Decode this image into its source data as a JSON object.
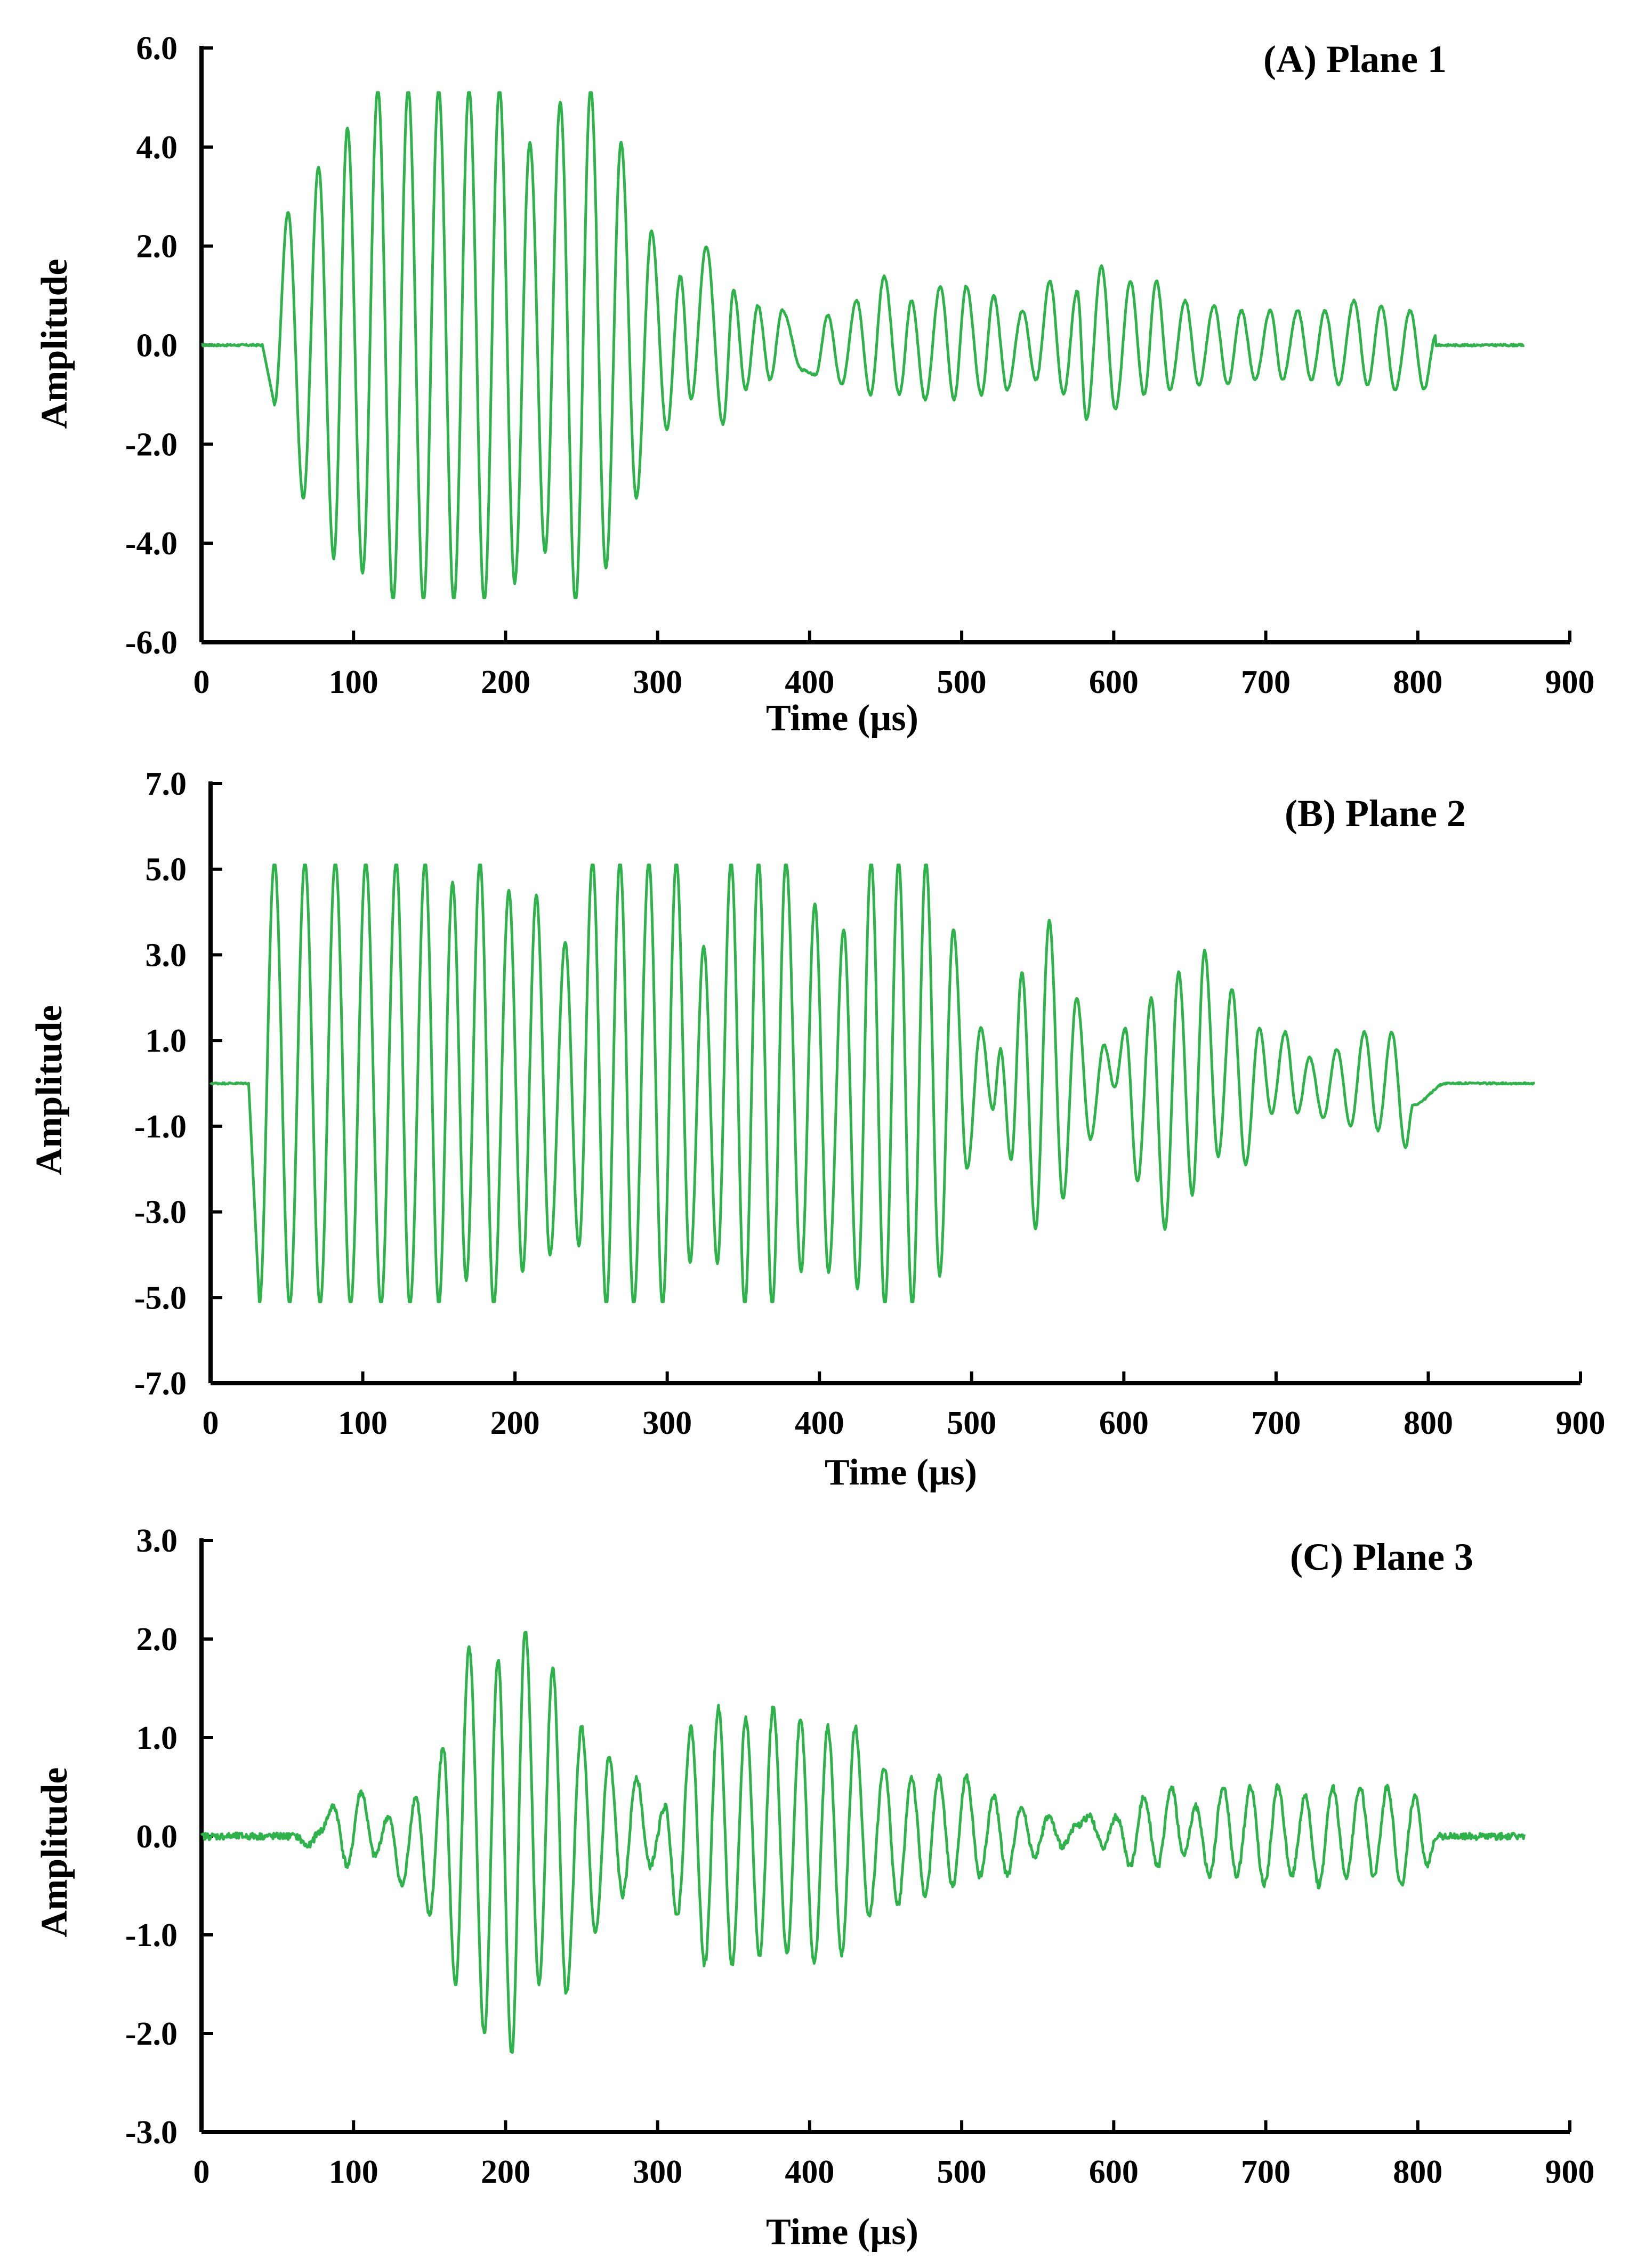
{
  "colors": {
    "trace": "#2db34a",
    "axis": "#000000"
  },
  "chart_data": [
    {
      "type": "line",
      "title": "(A) Plane 1",
      "xlabel": "Time (µs)",
      "ylabel": "Amplitude",
      "xlim": [
        0,
        900
      ],
      "ylim": [
        -6,
        6
      ],
      "x_ticks": [
        0,
        100,
        200,
        300,
        400,
        500,
        600,
        700,
        800,
        900
      ],
      "x_tick_labels": [
        "0",
        "100",
        "200",
        "300",
        "400",
        "500",
        "600",
        "700",
        "800",
        "900"
      ],
      "y_ticks": [
        -6,
        -4,
        -2,
        0,
        2,
        4,
        6
      ],
      "y_tick_labels": [
        "-6.0",
        "-4.0",
        "-2.0",
        "0.0",
        "2.0",
        "4.0",
        "6.0"
      ],
      "signal": {
        "start": 40,
        "end": 812,
        "duration": 870,
        "clip": 5.1,
        "noise": 0.02,
        "extrema": [
          [
            48,
            -1.2
          ],
          [
            57,
            2.7
          ],
          [
            67,
            -3.1
          ],
          [
            77,
            3.6
          ],
          [
            87,
            -4.3
          ],
          [
            96,
            4.4
          ],
          [
            106,
            -4.6
          ],
          [
            116,
            5.2
          ],
          [
            126,
            -5.2
          ],
          [
            136,
            5.2
          ],
          [
            146,
            -5.2
          ],
          [
            156,
            5.2
          ],
          [
            166,
            -5.2
          ],
          [
            176,
            5.2
          ],
          [
            186,
            -5.2
          ],
          [
            196,
            5.2
          ],
          [
            206,
            -4.8
          ],
          [
            216,
            4.1
          ],
          [
            226,
            -4.2
          ],
          [
            236,
            4.9
          ],
          [
            246,
            -5.2
          ],
          [
            256,
            5.2
          ],
          [
            266,
            -4.5
          ],
          [
            276,
            4.1
          ],
          [
            286,
            -3.1
          ],
          [
            296,
            2.3
          ],
          [
            306,
            -1.7
          ],
          [
            315,
            1.4
          ],
          [
            322,
            -1.1
          ],
          [
            332,
            2.0
          ],
          [
            343,
            -1.6
          ],
          [
            350,
            1.1
          ],
          [
            358,
            -0.9
          ],
          [
            366,
            0.8
          ],
          [
            374,
            -0.7
          ],
          [
            382,
            0.7
          ],
          [
            395,
            -0.5
          ],
          [
            404,
            -0.6
          ],
          [
            412,
            0.6
          ],
          [
            421,
            -0.8
          ],
          [
            431,
            0.9
          ],
          [
            440,
            -1.0
          ],
          [
            449,
            1.4
          ],
          [
            459,
            -1.0
          ],
          [
            467,
            0.9
          ],
          [
            476,
            -1.1
          ],
          [
            486,
            1.2
          ],
          [
            495,
            -1.1
          ],
          [
            503,
            1.2
          ],
          [
            513,
            -1.0
          ],
          [
            521,
            1.0
          ],
          [
            530,
            -0.9
          ],
          [
            540,
            0.7
          ],
          [
            549,
            -0.7
          ],
          [
            558,
            1.3
          ],
          [
            567,
            -1.0
          ],
          [
            576,
            1.1
          ],
          [
            582,
            -1.5
          ],
          [
            592,
            1.6
          ],
          [
            601,
            -1.3
          ],
          [
            611,
            1.3
          ],
          [
            620,
            -1.0
          ],
          [
            628,
            1.3
          ],
          [
            637,
            -0.9
          ],
          [
            647,
            0.9
          ],
          [
            656,
            -0.8
          ],
          [
            666,
            0.8
          ],
          [
            675,
            -0.8
          ],
          [
            684,
            0.7
          ],
          [
            693,
            -0.7
          ],
          [
            703,
            0.7
          ],
          [
            711,
            -0.7
          ],
          [
            721,
            0.7
          ],
          [
            730,
            -0.7
          ],
          [
            739,
            0.7
          ],
          [
            748,
            -0.8
          ],
          [
            758,
            0.9
          ],
          [
            767,
            -0.8
          ],
          [
            776,
            0.8
          ],
          [
            785,
            -0.9
          ],
          [
            795,
            0.7
          ],
          [
            804,
            -0.9
          ],
          [
            812,
            0.2
          ]
        ]
      }
    },
    {
      "type": "line",
      "title": "(B) Plane 2",
      "xlabel": "Time (µs)",
      "ylabel": "Amplitude",
      "xlim": [
        0,
        900
      ],
      "ylim": [
        -7,
        7
      ],
      "x_ticks": [
        0,
        100,
        200,
        300,
        400,
        500,
        600,
        700,
        800,
        900
      ],
      "x_tick_labels": [
        "0",
        "100",
        "200",
        "300",
        "400",
        "500",
        "600",
        "700",
        "800",
        "900"
      ],
      "y_ticks": [
        -7,
        -5,
        -3,
        -1,
        1,
        3,
        5,
        7
      ],
      "y_tick_labels": [
        "-7.0",
        "-5.0",
        "-3.0",
        "-1.0",
        "1.0",
        "3.0",
        "5.0",
        "7.0"
      ],
      "signal": {
        "start": 25,
        "end": 812,
        "duration": 870,
        "clip": 5.1,
        "noise": 0.02,
        "extrema": [
          [
            32,
            -5.2
          ],
          [
            42,
            5.2
          ],
          [
            52,
            -5.2
          ],
          [
            62,
            5.2
          ],
          [
            72,
            -5.2
          ],
          [
            82,
            5.2
          ],
          [
            92,
            -5.2
          ],
          [
            102,
            5.2
          ],
          [
            112,
            -5.2
          ],
          [
            122,
            5.2
          ],
          [
            131,
            -5.2
          ],
          [
            141,
            5.2
          ],
          [
            150,
            -5.2
          ],
          [
            159,
            4.7
          ],
          [
            168,
            -4.6
          ],
          [
            177,
            5.2
          ],
          [
            186,
            -5.2
          ],
          [
            196,
            4.5
          ],
          [
            205,
            -4.4
          ],
          [
            214,
            4.4
          ],
          [
            223,
            -4.0
          ],
          [
            233,
            3.3
          ],
          [
            242,
            -3.8
          ],
          [
            251,
            5.2
          ],
          [
            260,
            -5.2
          ],
          [
            269,
            5.2
          ],
          [
            278,
            -5.2
          ],
          [
            288,
            5.2
          ],
          [
            297,
            -5.2
          ],
          [
            306,
            5.2
          ],
          [
            315,
            -4.2
          ],
          [
            324,
            3.2
          ],
          [
            333,
            -4.2
          ],
          [
            342,
            5.2
          ],
          [
            351,
            -5.2
          ],
          [
            360,
            5.2
          ],
          [
            369,
            -5.2
          ],
          [
            378,
            5.2
          ],
          [
            388,
            -4.4
          ],
          [
            397,
            4.2
          ],
          [
            406,
            -4.4
          ],
          [
            416,
            3.6
          ],
          [
            425,
            -4.8
          ],
          [
            434,
            5.2
          ],
          [
            443,
            -5.2
          ],
          [
            452,
            5.2
          ],
          [
            461,
            -5.2
          ],
          [
            470,
            5.2
          ],
          [
            479,
            -4.5
          ],
          [
            488,
            3.6
          ],
          [
            497,
            -2.0
          ],
          [
            506,
            1.3
          ],
          [
            514,
            -0.6
          ],
          [
            519,
            0.8
          ],
          [
            526,
            -1.8
          ],
          [
            533,
            2.6
          ],
          [
            542,
            -3.4
          ],
          [
            551,
            3.8
          ],
          [
            560,
            -2.7
          ],
          [
            569,
            2.0
          ],
          [
            578,
            -1.3
          ],
          [
            587,
            0.9
          ],
          [
            594,
            -0.1
          ],
          [
            601,
            1.3
          ],
          [
            609,
            -2.3
          ],
          [
            618,
            2.0
          ],
          [
            627,
            -3.4
          ],
          [
            636,
            2.6
          ],
          [
            645,
            -2.6
          ],
          [
            653,
            3.1
          ],
          [
            662,
            -1.7
          ],
          [
            671,
            2.2
          ],
          [
            680,
            -1.9
          ],
          [
            689,
            1.3
          ],
          [
            697,
            -0.7
          ],
          [
            706,
            1.2
          ],
          [
            714,
            -0.7
          ],
          [
            722,
            0.6
          ],
          [
            731,
            -0.8
          ],
          [
            740,
            0.8
          ],
          [
            749,
            -1.0
          ],
          [
            758,
            1.2
          ],
          [
            767,
            -1.1
          ],
          [
            776,
            1.2
          ],
          [
            785,
            -1.5
          ],
          [
            790,
            -0.5
          ],
          [
            812,
            0.0
          ]
        ]
      }
    },
    {
      "type": "line",
      "title": "(C) Plane 3",
      "xlabel": "Time (µs)",
      "ylabel": "Amplitude",
      "xlim": [
        0,
        900
      ],
      "ylim": [
        -3,
        3
      ],
      "x_ticks": [
        0,
        100,
        200,
        300,
        400,
        500,
        600,
        700,
        800,
        900
      ],
      "x_tick_labels": [
        "0",
        "100",
        "200",
        "300",
        "400",
        "500",
        "600",
        "700",
        "800",
        "900"
      ],
      "y_ticks": [
        -3,
        -2,
        -1,
        0,
        1,
        2,
        3
      ],
      "y_tick_labels": [
        "-3.0",
        "-2.0",
        "-1.0",
        "0.0",
        "1.0",
        "2.0",
        "3.0"
      ],
      "signal": {
        "start": 60,
        "end": 812,
        "duration": 870,
        "clip": 99,
        "noise": 0.035,
        "extrema": [
          [
            62,
            0.0
          ],
          [
            70,
            -0.1
          ],
          [
            78,
            0.05
          ],
          [
            87,
            0.3
          ],
          [
            96,
            -0.3
          ],
          [
            105,
            0.45
          ],
          [
            114,
            -0.2
          ],
          [
            123,
            0.2
          ],
          [
            132,
            -0.5
          ],
          [
            141,
            0.4
          ],
          [
            150,
            -0.8
          ],
          [
            159,
            0.9
          ],
          [
            167,
            -1.5
          ],
          [
            176,
            1.9
          ],
          [
            186,
            -2.0
          ],
          [
            195,
            1.8
          ],
          [
            204,
            -2.2
          ],
          [
            213,
            2.1
          ],
          [
            222,
            -1.5
          ],
          [
            231,
            1.7
          ],
          [
            240,
            -1.6
          ],
          [
            250,
            1.1
          ],
          [
            259,
            -1.0
          ],
          [
            268,
            0.8
          ],
          [
            277,
            -0.6
          ],
          [
            286,
            0.6
          ],
          [
            295,
            -0.3
          ],
          [
            305,
            0.3
          ],
          [
            313,
            -0.8
          ],
          [
            322,
            1.1
          ],
          [
            331,
            -1.3
          ],
          [
            340,
            1.3
          ],
          [
            349,
            -1.3
          ],
          [
            358,
            1.2
          ],
          [
            367,
            -1.2
          ],
          [
            376,
            1.3
          ],
          [
            385,
            -1.2
          ],
          [
            394,
            1.2
          ],
          [
            403,
            -1.3
          ],
          [
            412,
            1.1
          ],
          [
            421,
            -1.2
          ],
          [
            430,
            1.1
          ],
          [
            439,
            -0.8
          ],
          [
            449,
            0.7
          ],
          [
            458,
            -0.7
          ],
          [
            467,
            0.6
          ],
          [
            476,
            -0.6
          ],
          [
            485,
            0.6
          ],
          [
            494,
            -0.5
          ],
          [
            503,
            0.6
          ],
          [
            512,
            -0.4
          ],
          [
            521,
            0.4
          ],
          [
            530,
            -0.4
          ],
          [
            539,
            0.3
          ],
          [
            548,
            -0.2
          ],
          [
            557,
            0.2
          ],
          [
            566,
            -0.1
          ],
          [
            575,
            0.1
          ],
          [
            584,
            0.2
          ],
          [
            593,
            -0.1
          ],
          [
            602,
            0.2
          ],
          [
            611,
            -0.3
          ],
          [
            620,
            0.4
          ],
          [
            629,
            -0.3
          ],
          [
            638,
            0.5
          ],
          [
            646,
            -0.2
          ],
          [
            654,
            0.3
          ],
          [
            663,
            -0.4
          ],
          [
            672,
            0.5
          ],
          [
            681,
            -0.4
          ],
          [
            690,
            0.5
          ],
          [
            699,
            -0.5
          ],
          [
            708,
            0.5
          ],
          [
            717,
            -0.4
          ],
          [
            726,
            0.4
          ],
          [
            735,
            -0.5
          ],
          [
            744,
            0.5
          ],
          [
            753,
            -0.4
          ],
          [
            762,
            0.5
          ],
          [
            771,
            -0.4
          ],
          [
            780,
            0.5
          ],
          [
            789,
            -0.5
          ],
          [
            798,
            0.4
          ],
          [
            806,
            -0.3
          ],
          [
            812,
            0.0
          ]
        ]
      }
    }
  ]
}
